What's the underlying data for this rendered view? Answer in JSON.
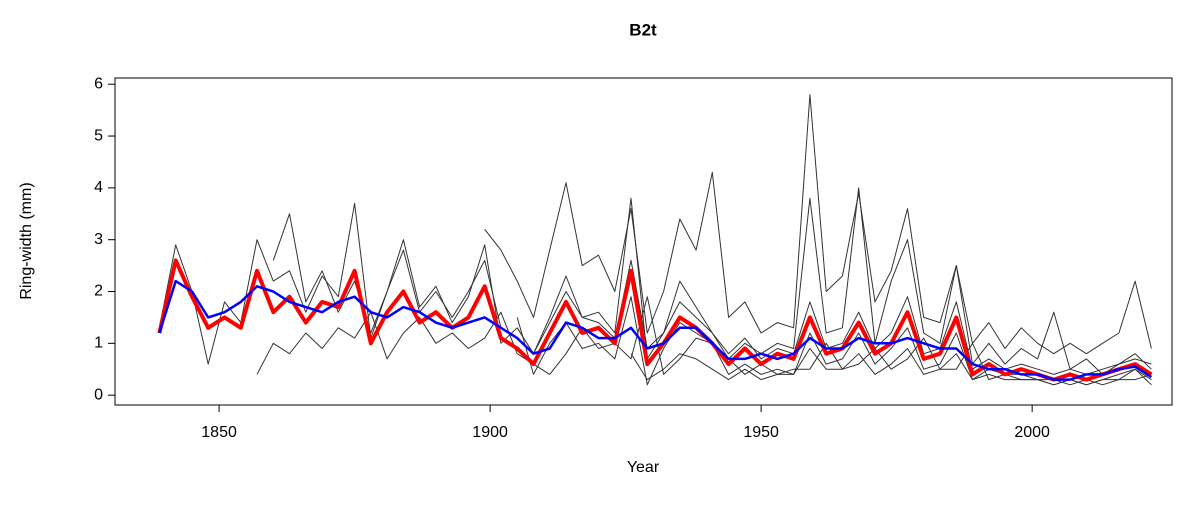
{
  "chart_data": {
    "type": "line",
    "title": "B2t",
    "x_label": "Year",
    "y_label": "Ring-width (mm)",
    "x": [
      1839,
      1842,
      1845,
      1848,
      1851,
      1854,
      1857,
      1860,
      1863,
      1866,
      1869,
      1872,
      1875,
      1878,
      1881,
      1884,
      1887,
      1890,
      1893,
      1896,
      1899,
      1902,
      1905,
      1908,
      1911,
      1914,
      1917,
      1920,
      1923,
      1926,
      1929,
      1932,
      1935,
      1938,
      1941,
      1944,
      1947,
      1950,
      1953,
      1956,
      1959,
      1962,
      1965,
      1968,
      1971,
      1974,
      1977,
      1980,
      1983,
      1986,
      1989,
      1992,
      1995,
      1998,
      2001,
      2004,
      2007,
      2010,
      2013,
      2016,
      2019,
      2022
    ],
    "xlim": [
      1830.8,
      2025.8
    ],
    "xticks": [
      1850,
      1900,
      1950,
      2000
    ],
    "ylim": [
      -0.19,
      6.12
    ],
    "yticks": [
      0,
      1,
      2,
      3,
      4,
      5,
      6
    ],
    "grid": false,
    "series": [
      {
        "color": "#333333",
        "linewidth": 1,
        "values": [
          1.3,
          2.9,
          2.0,
          0.6,
          1.8,
          1.4,
          3.0,
          2.2,
          2.4,
          1.6,
          2.3,
          1.9,
          3.7,
          1.1,
          2.0,
          2.8,
          1.6,
          2.0,
          1.5,
          2.0,
          2.6,
          1.3,
          1.1,
          0.8,
          1.5,
          2.3,
          1.5,
          1.6,
          1.2,
          3.8,
          0.7,
          1.2,
          1.8,
          1.5,
          1.2,
          0.8,
          1.1,
          0.7,
          0.9,
          0.8,
          1.8,
          0.9,
          1.0,
          1.6,
          0.9,
          1.2,
          1.9,
          0.8,
          0.9,
          1.8,
          0.5,
          0.7,
          0.5,
          0.6,
          0.5,
          0.4,
          0.5,
          0.4,
          0.5,
          0.6,
          0.8,
          0.5
        ]
      },
      {
        "color": "#333333",
        "linewidth": 1,
        "values": [
          null,
          null,
          null,
          null,
          null,
          null,
          0.4,
          1.0,
          0.8,
          1.2,
          0.9,
          1.3,
          1.1,
          1.6,
          0.7,
          1.2,
          1.5,
          1.0,
          1.2,
          0.9,
          1.1,
          1.6,
          0.8,
          0.6,
          0.4,
          0.8,
          1.3,
          0.9,
          1.0,
          0.7,
          1.9,
          0.4,
          0.7,
          1.1,
          1.0,
          0.7,
          0.4,
          0.6,
          0.4,
          0.5,
          0.5,
          1.0,
          0.5,
          0.6,
          0.9,
          0.5,
          0.7,
          1.1,
          0.5,
          0.5,
          1.0,
          0.3,
          0.4,
          0.3,
          0.3,
          0.3,
          0.2,
          0.3,
          0.2,
          0.3,
          0.3,
          0.4
        ]
      },
      {
        "color": "#333333",
        "linewidth": 1,
        "values": [
          null,
          null,
          null,
          null,
          null,
          null,
          null,
          null,
          null,
          null,
          null,
          null,
          null,
          null,
          null,
          null,
          null,
          null,
          null,
          null,
          3.2,
          2.8,
          2.2,
          1.5,
          2.8,
          4.1,
          2.5,
          2.7,
          2.0,
          3.6,
          1.2,
          2.0,
          3.4,
          2.8,
          4.3,
          1.5,
          1.8,
          1.2,
          1.4,
          1.3,
          5.8,
          2.0,
          2.3,
          3.9,
          1.8,
          2.4,
          3.6,
          1.5,
          1.4,
          2.5,
          1.0,
          1.4,
          0.9,
          1.3,
          1.0,
          0.8,
          1.0,
          0.8,
          1.0,
          1.2,
          2.2,
          0.9
        ]
      },
      {
        "color": "#333333",
        "linewidth": 1,
        "values": [
          null,
          null,
          null,
          null,
          null,
          null,
          null,
          null,
          null,
          null,
          null,
          null,
          null,
          null,
          null,
          null,
          null,
          null,
          null,
          null,
          null,
          null,
          null,
          null,
          null,
          null,
          null,
          null,
          null,
          0.8,
          0.3,
          0.5,
          0.8,
          0.7,
          0.5,
          0.3,
          0.5,
          0.3,
          0.4,
          0.4,
          0.9,
          0.5,
          0.5,
          0.8,
          0.4,
          0.6,
          0.9,
          0.4,
          0.5,
          0.8,
          0.3,
          0.4,
          0.3,
          0.3,
          0.3,
          0.2,
          0.3,
          0.2,
          0.3,
          0.3,
          0.5,
          0.2
        ]
      },
      {
        "color": "#333333",
        "linewidth": 1,
        "values": [
          null,
          null,
          null,
          null,
          null,
          null,
          null,
          2.6,
          3.5,
          1.8,
          2.4,
          1.6,
          2.2,
          1.2,
          2.0,
          3.0,
          1.7,
          2.1,
          1.4,
          1.9,
          2.9,
          1.0,
          1.3,
          0.8,
          1.4,
          2.0,
          1.5,
          1.4,
          1.1,
          2.6,
          0.9,
          1.2,
          2.2,
          1.7,
          1.2,
          0.7,
          1.0,
          0.8,
          1.0,
          0.9,
          3.8,
          1.2,
          1.3,
          4.0,
          1.0,
          2.2,
          3.0,
          1.2,
          1.0,
          2.5,
          0.6,
          1.0,
          0.6,
          0.9,
          0.7,
          1.6,
          0.5,
          0.7,
          0.4,
          0.6,
          0.7,
          0.6
        ]
      },
      {
        "color": "#333333",
        "linewidth": 1,
        "values": [
          null,
          null,
          null,
          null,
          null,
          null,
          null,
          null,
          null,
          null,
          null,
          null,
          null,
          null,
          null,
          null,
          null,
          null,
          null,
          null,
          null,
          null,
          1.5,
          0.4,
          1.0,
          1.4,
          0.9,
          1.0,
          0.7,
          1.9,
          0.2,
          0.9,
          1.4,
          1.2,
          1.0,
          0.4,
          0.6,
          0.4,
          0.5,
          0.4,
          1.2,
          0.6,
          0.7,
          1.2,
          0.6,
          0.9,
          1.3,
          0.5,
          0.6,
          1.2,
          0.3,
          0.5,
          0.4,
          0.4,
          0.3,
          0.2,
          0.3,
          0.2,
          0.3,
          0.4,
          0.5,
          0.3
        ]
      },
      {
        "color": "#ff0000",
        "linewidth": 4,
        "values": [
          1.2,
          2.6,
          1.9,
          1.3,
          1.5,
          1.3,
          2.4,
          1.6,
          1.9,
          1.4,
          1.8,
          1.7,
          2.4,
          1.0,
          1.6,
          2.0,
          1.4,
          1.6,
          1.3,
          1.5,
          2.1,
          1.1,
          0.9,
          0.6,
          1.2,
          1.8,
          1.2,
          1.3,
          1.0,
          2.4,
          0.6,
          1.0,
          1.5,
          1.3,
          1.0,
          0.6,
          0.9,
          0.6,
          0.8,
          0.7,
          1.5,
          0.8,
          0.9,
          1.4,
          0.8,
          1.0,
          1.6,
          0.7,
          0.8,
          1.5,
          0.4,
          0.6,
          0.4,
          0.5,
          0.4,
          0.3,
          0.4,
          0.3,
          0.4,
          0.5,
          0.6,
          0.4
        ]
      },
      {
        "color": "#0000ff",
        "linewidth": 2.5,
        "values": [
          1.2,
          2.2,
          2.0,
          1.5,
          1.6,
          1.8,
          2.1,
          2.0,
          1.8,
          1.7,
          1.6,
          1.8,
          1.9,
          1.6,
          1.5,
          1.7,
          1.6,
          1.4,
          1.3,
          1.4,
          1.5,
          1.3,
          1.1,
          0.8,
          0.9,
          1.4,
          1.3,
          1.1,
          1.1,
          1.3,
          0.9,
          1.0,
          1.3,
          1.3,
          1.0,
          0.7,
          0.7,
          0.8,
          0.7,
          0.8,
          1.1,
          0.9,
          0.9,
          1.1,
          1.0,
          1.0,
          1.1,
          1.0,
          0.9,
          0.9,
          0.6,
          0.5,
          0.5,
          0.4,
          0.4,
          0.3,
          0.3,
          0.4,
          0.4,
          0.5,
          0.55,
          0.35
        ]
      }
    ]
  }
}
